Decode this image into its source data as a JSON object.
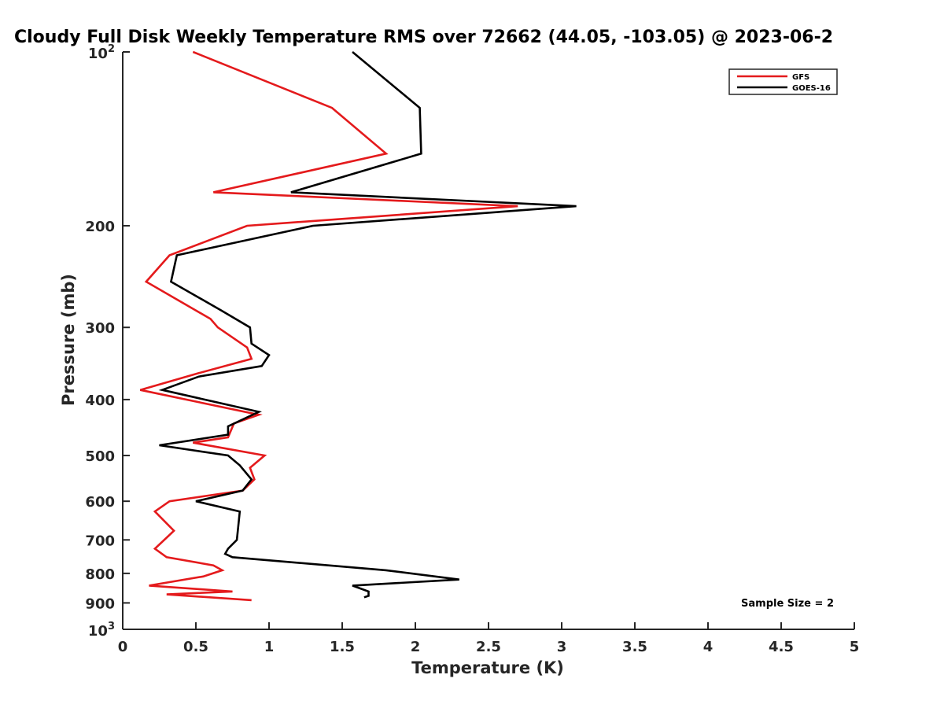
{
  "chart_data": {
    "type": "line",
    "title": "Cloudy Full Disk Weekly Temperature RMS over 72662 (44.05, -103.05) @ 2023-06-2",
    "xlabel": "Temperature (K)",
    "ylabel": "Pressure (mb)",
    "xlim": [
      0,
      5
    ],
    "ylim": [
      100,
      1000
    ],
    "y_scale": "log",
    "y_reversed": true,
    "grid": false,
    "x_ticks": [
      0,
      0.5,
      1,
      1.5,
      2,
      2.5,
      3,
      3.5,
      4,
      4.5,
      5
    ],
    "x_tick_labels": [
      "0",
      "0.5",
      "1",
      "1.5",
      "2",
      "2.5",
      "3",
      "3.5",
      "4",
      "4.5",
      "5"
    ],
    "y_ticks": [
      {
        "value": 100,
        "base": "10",
        "exp": "2"
      },
      {
        "value": 200,
        "label": "200"
      },
      {
        "value": 300,
        "label": "300"
      },
      {
        "value": 400,
        "label": "400"
      },
      {
        "value": 500,
        "label": "500"
      },
      {
        "value": 600,
        "label": "600"
      },
      {
        "value": 700,
        "label": "700"
      },
      {
        "value": 800,
        "label": "800"
      },
      {
        "value": 900,
        "label": "900"
      },
      {
        "value": 1000,
        "base": "10",
        "exp": "3"
      }
    ],
    "legend_position": "top-right",
    "annotation": "Sample Size = 2",
    "series": [
      {
        "name": "GFS",
        "color": "#e41a1c",
        "points": [
          [
            0.48,
            100
          ],
          [
            1.43,
            125
          ],
          [
            1.8,
            150
          ],
          [
            0.62,
            175
          ],
          [
            2.7,
            185
          ],
          [
            0.85,
            200
          ],
          [
            0.32,
            225
          ],
          [
            0.16,
            250
          ],
          [
            0.6,
            290
          ],
          [
            0.65,
            300
          ],
          [
            0.85,
            325
          ],
          [
            0.88,
            340
          ],
          [
            0.52,
            360
          ],
          [
            0.12,
            385
          ],
          [
            0.93,
            425
          ],
          [
            0.76,
            440
          ],
          [
            0.72,
            465
          ],
          [
            0.48,
            475
          ],
          [
            0.97,
            500
          ],
          [
            0.87,
            525
          ],
          [
            0.9,
            550
          ],
          [
            0.82,
            575
          ],
          [
            0.32,
            600
          ],
          [
            0.22,
            625
          ],
          [
            0.35,
            675
          ],
          [
            0.22,
            725
          ],
          [
            0.3,
            750
          ],
          [
            0.62,
            775
          ],
          [
            0.68,
            790
          ],
          [
            0.55,
            810
          ],
          [
            0.18,
            840
          ],
          [
            0.75,
            860
          ],
          [
            0.3,
            870
          ],
          [
            0.88,
            890
          ]
        ]
      },
      {
        "name": "GOES-16",
        "color": "#000000",
        "points": [
          [
            1.57,
            100
          ],
          [
            2.03,
            125
          ],
          [
            2.04,
            150
          ],
          [
            1.15,
            175
          ],
          [
            3.1,
            185
          ],
          [
            1.3,
            200
          ],
          [
            0.37,
            225
          ],
          [
            0.33,
            250
          ],
          [
            0.67,
            280
          ],
          [
            0.87,
            300
          ],
          [
            0.88,
            320
          ],
          [
            1.0,
            335
          ],
          [
            0.95,
            350
          ],
          [
            0.52,
            365
          ],
          [
            0.27,
            385
          ],
          [
            0.93,
            420
          ],
          [
            0.72,
            445
          ],
          [
            0.72,
            460
          ],
          [
            0.25,
            480
          ],
          [
            0.72,
            500
          ],
          [
            0.8,
            520
          ],
          [
            0.88,
            550
          ],
          [
            0.82,
            575
          ],
          [
            0.5,
            600
          ],
          [
            0.8,
            625
          ],
          [
            0.78,
            700
          ],
          [
            0.72,
            725
          ],
          [
            0.7,
            740
          ],
          [
            0.75,
            750
          ],
          [
            1.8,
            790
          ],
          [
            2.3,
            820
          ],
          [
            1.57,
            840
          ],
          [
            1.68,
            860
          ],
          [
            1.68,
            875
          ],
          [
            1.65,
            880
          ]
        ]
      }
    ]
  }
}
